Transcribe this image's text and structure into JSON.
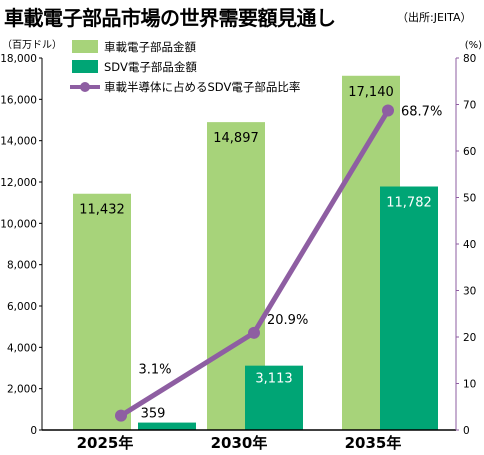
{
  "header": {
    "title": "車載電子部品市場の世界需要額見通し",
    "source": "（出所:JEITA）"
  },
  "colors": {
    "vehicle_bar": "#a7d37a",
    "sdv_bar": "#00a575",
    "share_line": "#8e5ea2",
    "axis": "#000000",
    "right_axis": "#8e5ea2"
  },
  "chart_data": {
    "type": "bar",
    "categories": [
      "2025年",
      "2030年",
      "2035年"
    ],
    "series": [
      {
        "name": "車載電子部品金額",
        "type": "bar",
        "axis": "left",
        "values": [
          11432,
          14897,
          17140
        ],
        "labels": [
          "11,432",
          "14,897",
          "17,140"
        ]
      },
      {
        "name": "SDV電子部品金額",
        "type": "bar",
        "axis": "left",
        "values": [
          359,
          3113,
          11782
        ],
        "labels": [
          "359",
          "3,113",
          "11,782"
        ]
      },
      {
        "name": "車載半導体に占めるSDV電子部品比率",
        "type": "line",
        "axis": "right",
        "values": [
          3.1,
          20.9,
          68.7
        ],
        "labels": [
          "3.1%",
          "20.9%",
          "68.7%"
        ]
      }
    ],
    "y_left": {
      "unit": "（百万ドル）",
      "ylim": [
        0,
        18000
      ],
      "ticks": [
        "0",
        "2,000",
        "4,000",
        "6,000",
        "8,000",
        "10,000",
        "12,000",
        "14,000",
        "16,000",
        "18,000"
      ]
    },
    "y_right": {
      "unit": "(%)",
      "ylim": [
        0,
        80
      ],
      "ticks": [
        "0",
        "10",
        "20",
        "30",
        "40",
        "50",
        "60",
        "70",
        "80"
      ]
    },
    "grid": false,
    "legend_position": "top-left"
  }
}
